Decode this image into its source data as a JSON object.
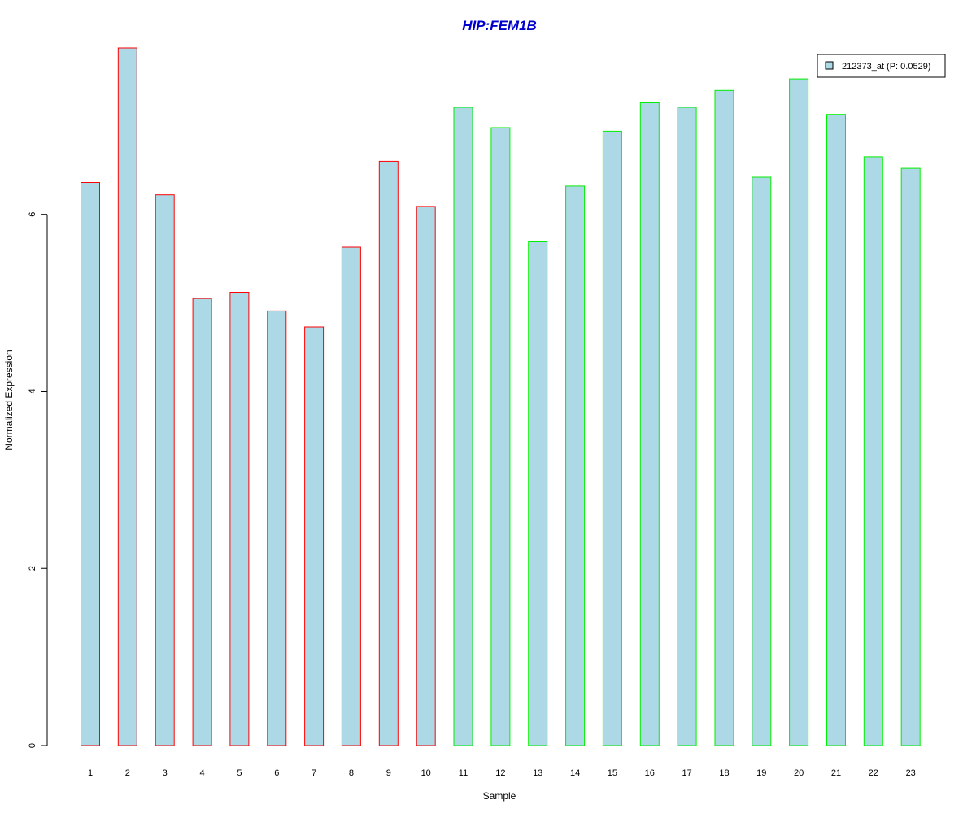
{
  "chart_data": {
    "type": "bar",
    "title": "HIP:FEM1B",
    "xlabel": "Sample",
    "ylabel": "Normalized Expression",
    "categories": [
      "1",
      "2",
      "3",
      "4",
      "5",
      "6",
      "7",
      "8",
      "9",
      "10",
      "11",
      "12",
      "13",
      "14",
      "15",
      "16",
      "17",
      "18",
      "19",
      "20",
      "21",
      "22",
      "23"
    ],
    "values": [
      6.36,
      7.88,
      6.22,
      5.05,
      5.12,
      4.91,
      4.73,
      5.63,
      6.6,
      6.09,
      7.21,
      6.98,
      5.69,
      6.32,
      6.94,
      7.26,
      7.21,
      7.4,
      6.42,
      7.53,
      7.13,
      6.65,
      6.52
    ],
    "group_borders": [
      "#ff0000",
      "#ff0000",
      "#ff0000",
      "#ff0000",
      "#ff0000",
      "#ff0000",
      "#ff0000",
      "#ff0000",
      "#ff0000",
      "#ff0000",
      "#00ee00",
      "#00ee00",
      "#00ee00",
      "#00ee00",
      "#00ee00",
      "#00ee00",
      "#00ee00",
      "#00ee00",
      "#00ee00",
      "#00ee00",
      "#00ee00",
      "#00ee00",
      "#00ee00"
    ],
    "yticks": [
      0,
      2,
      4,
      6
    ],
    "ylim": [
      0,
      7.88
    ],
    "fill_color": "#add8e6",
    "title_color": "#0000cc",
    "legend": {
      "label": "212373_at (P: 0.0529)",
      "position": "top-right"
    },
    "grid": false
  }
}
